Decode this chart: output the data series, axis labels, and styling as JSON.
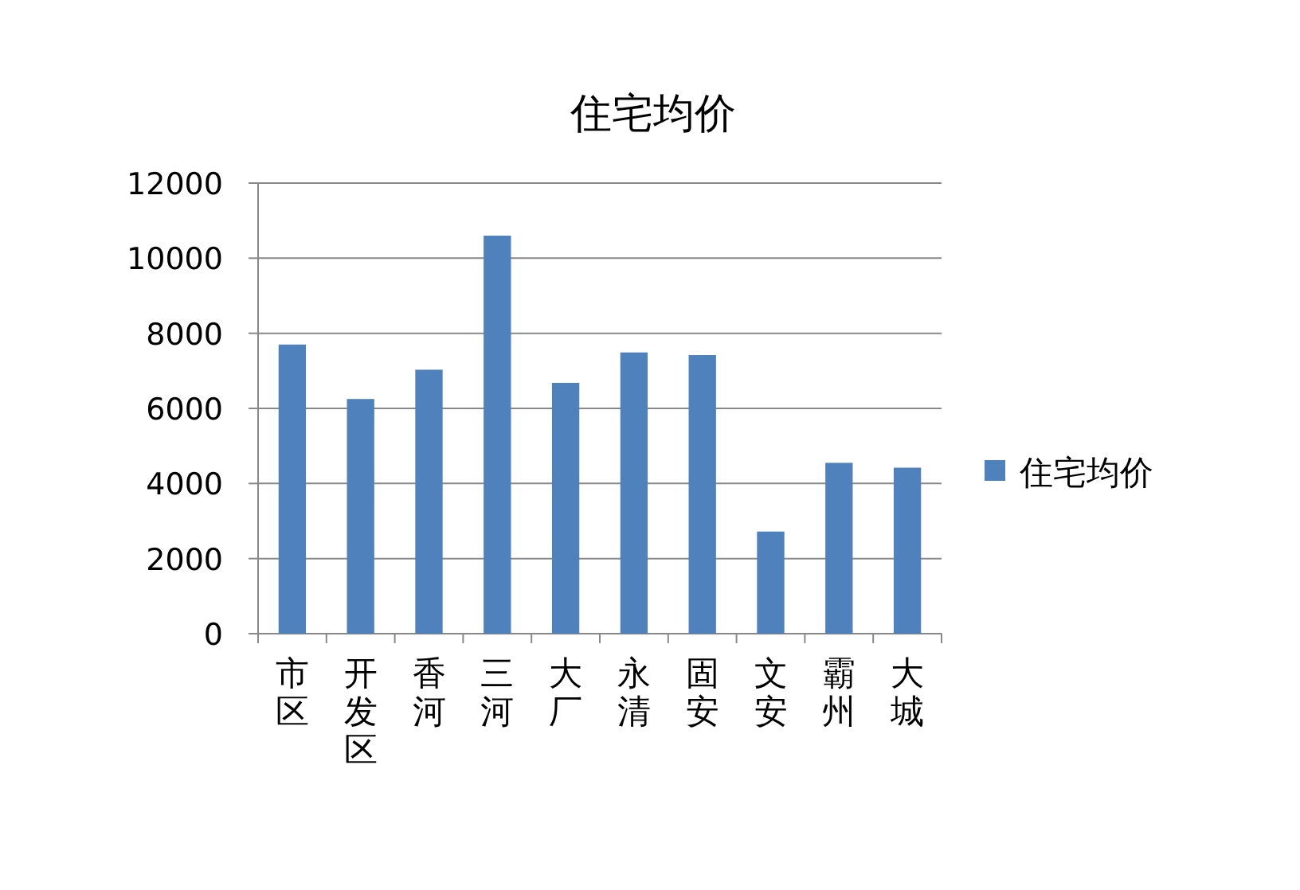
{
  "chart_data": {
    "type": "bar",
    "title": "住宅均价",
    "categories": [
      "市区",
      "开发区",
      "香河",
      "三河",
      "大厂",
      "永清",
      "固安",
      "文安",
      "霸州",
      "大城"
    ],
    "series": [
      {
        "name": "住宅均价",
        "color": "#4f81bd",
        "values": [
          7700,
          6250,
          7030,
          10600,
          6680,
          7490,
          7420,
          2720,
          4550,
          4420
        ]
      }
    ],
    "ylim": [
      0,
      12000
    ],
    "yticks": [
      0,
      2000,
      4000,
      6000,
      8000,
      10000,
      12000
    ],
    "grid": "y",
    "legend": "right"
  }
}
